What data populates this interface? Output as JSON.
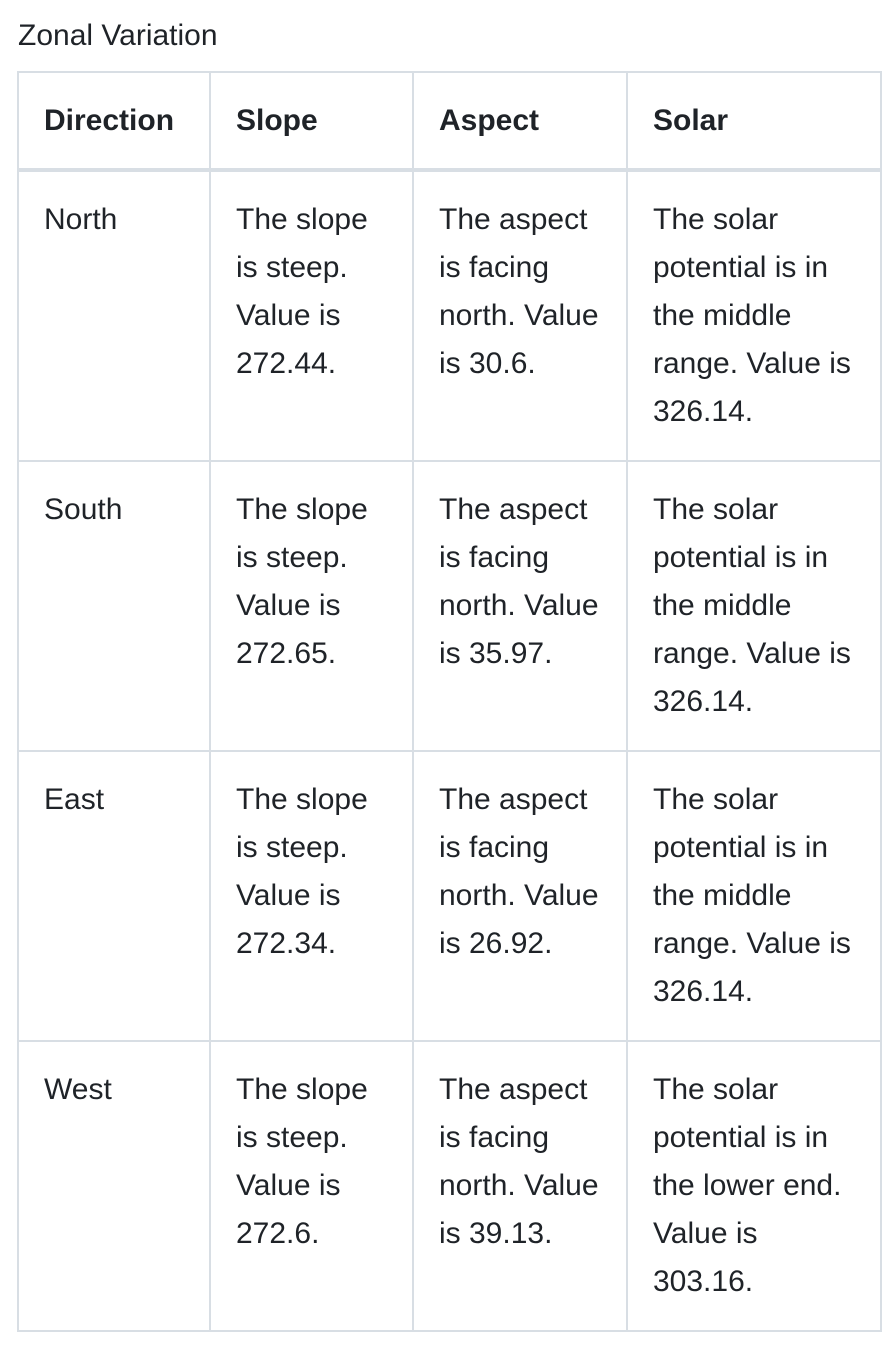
{
  "caption": "Zonal Variation",
  "table": {
    "headers": [
      "Direction",
      "Slope",
      "Aspect",
      "Solar"
    ],
    "rows": [
      {
        "direction": "North",
        "slope": "The slope is steep. Value is 272.44.",
        "aspect": "The aspect is facing north. Value is 30.6.",
        "solar": "The solar potential is in the middle range. Value is 326.14."
      },
      {
        "direction": "South",
        "slope": "The slope is steep. Value is 272.65.",
        "aspect": "The aspect is facing north. Value is 35.97.",
        "solar": "The solar potential is in the middle range. Value is 326.14."
      },
      {
        "direction": "East",
        "slope": "The slope is steep. Value is 272.34.",
        "aspect": "The aspect is facing north. Value is 26.92.",
        "solar": "The solar potential is in the middle range. Value is 326.14."
      },
      {
        "direction": "West",
        "slope": "The slope is steep. Value is 272.6.",
        "aspect": "The aspect is facing north. Value is 39.13.",
        "solar": "The solar potential is in the lower end. Value is 303.16."
      }
    ]
  }
}
